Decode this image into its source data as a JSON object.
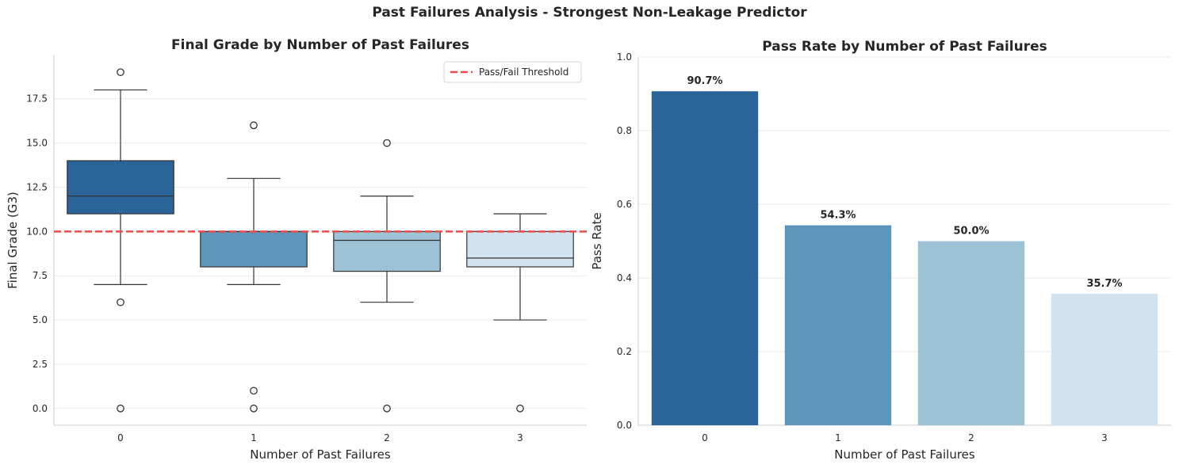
{
  "suptitle": "Past Failures Analysis - Strongest Non-Leakage Predictor",
  "colors": {
    "blues": [
      "#2a6499",
      "#5b95bb",
      "#9dc1d5",
      "#d2e2ee"
    ],
    "threshold": "#f04a4a",
    "box_edge": "#333333",
    "grid": "#ebebeb"
  },
  "chart_data": [
    {
      "type": "box",
      "title": "Final Grade by Number of Past Failures",
      "xlabel": "Number of Past Failures",
      "ylabel": "Final Grade (G3)",
      "categories": [
        "0",
        "1",
        "2",
        "3"
      ],
      "ylim": [
        -0.95,
        19.95
      ],
      "yticks": [
        0.0,
        2.5,
        5.0,
        7.5,
        10.0,
        12.5,
        15.0,
        17.5
      ],
      "yticklabels": [
        "0.0",
        "2.5",
        "5.0",
        "7.5",
        "10.0",
        "12.5",
        "15.0",
        "17.5"
      ],
      "boxes": [
        {
          "category": "0",
          "whislo": 7,
          "q1": 11,
          "med": 12,
          "q3": 14,
          "whishi": 18,
          "fliers": [
            19,
            6,
            0
          ]
        },
        {
          "category": "1",
          "whislo": 7,
          "q1": 8,
          "med": 10,
          "q3": 10,
          "whishi": 13,
          "fliers": [
            16,
            1,
            0
          ]
        },
        {
          "category": "2",
          "whislo": 6,
          "q1": 7.75,
          "med": 9.5,
          "q3": 10,
          "whishi": 12,
          "fliers": [
            15,
            0
          ]
        },
        {
          "category": "3",
          "whislo": 5,
          "q1": 8,
          "med": 8.5,
          "q3": 10,
          "whishi": 11,
          "fliers": [
            0
          ]
        }
      ],
      "threshold": {
        "value": 10,
        "label": "Pass/Fail Threshold"
      },
      "legend_loc": "upper right",
      "grid": "y"
    },
    {
      "type": "bar",
      "title": "Pass Rate by Number of Past Failures",
      "xlabel": "Number of Past Failures",
      "ylabel": "Pass Rate",
      "categories": [
        "0",
        "1",
        "2",
        "3"
      ],
      "values": [
        0.907,
        0.543,
        0.5,
        0.357
      ],
      "data_labels": [
        "90.7%",
        "54.3%",
        "50.0%",
        "35.7%"
      ],
      "ylim": [
        0,
        1.0
      ],
      "yticks": [
        0.0,
        0.2,
        0.4,
        0.6,
        0.8,
        1.0
      ],
      "yticklabels": [
        "0.0",
        "0.2",
        "0.4",
        "0.6",
        "0.8",
        "1.0"
      ],
      "grid": "y"
    }
  ]
}
